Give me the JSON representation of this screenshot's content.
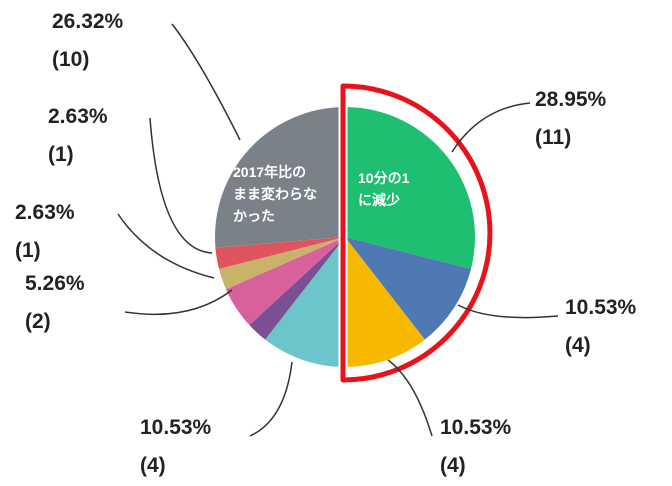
{
  "chart_data": {
    "type": "pie",
    "categories": [
      null,
      null,
      null,
      null,
      null,
      null,
      null,
      null,
      null
    ],
    "values": [
      28.95,
      10.53,
      10.53,
      10.53,
      2.63,
      5.26,
      2.63,
      2.63,
      26.32
    ],
    "value_labels": [
      "28.95%",
      "10.53%",
      "10.53%",
      "10.53%",
      null,
      "5.26%",
      "2.63%",
      "2.63%",
      "26.32%"
    ],
    "count_labels": [
      "(11)",
      "(4)",
      "(4)",
      "(4)",
      null,
      "(2)",
      "(1)",
      "(1)",
      "(10)"
    ],
    "colors": [
      "#1fbf72",
      "#4f79b4",
      "#f6b900",
      "#6cc5ca",
      "#7a4f93",
      "#d8609b",
      "#c9b36b",
      "#e0545f",
      "#7b8189"
    ],
    "annotations": [
      {
        "lines": [
          "10分の1",
          "に減少"
        ]
      },
      {
        "lines": [
          "2017年比の",
          "まま変わらな",
          "かった"
        ]
      }
    ]
  }
}
